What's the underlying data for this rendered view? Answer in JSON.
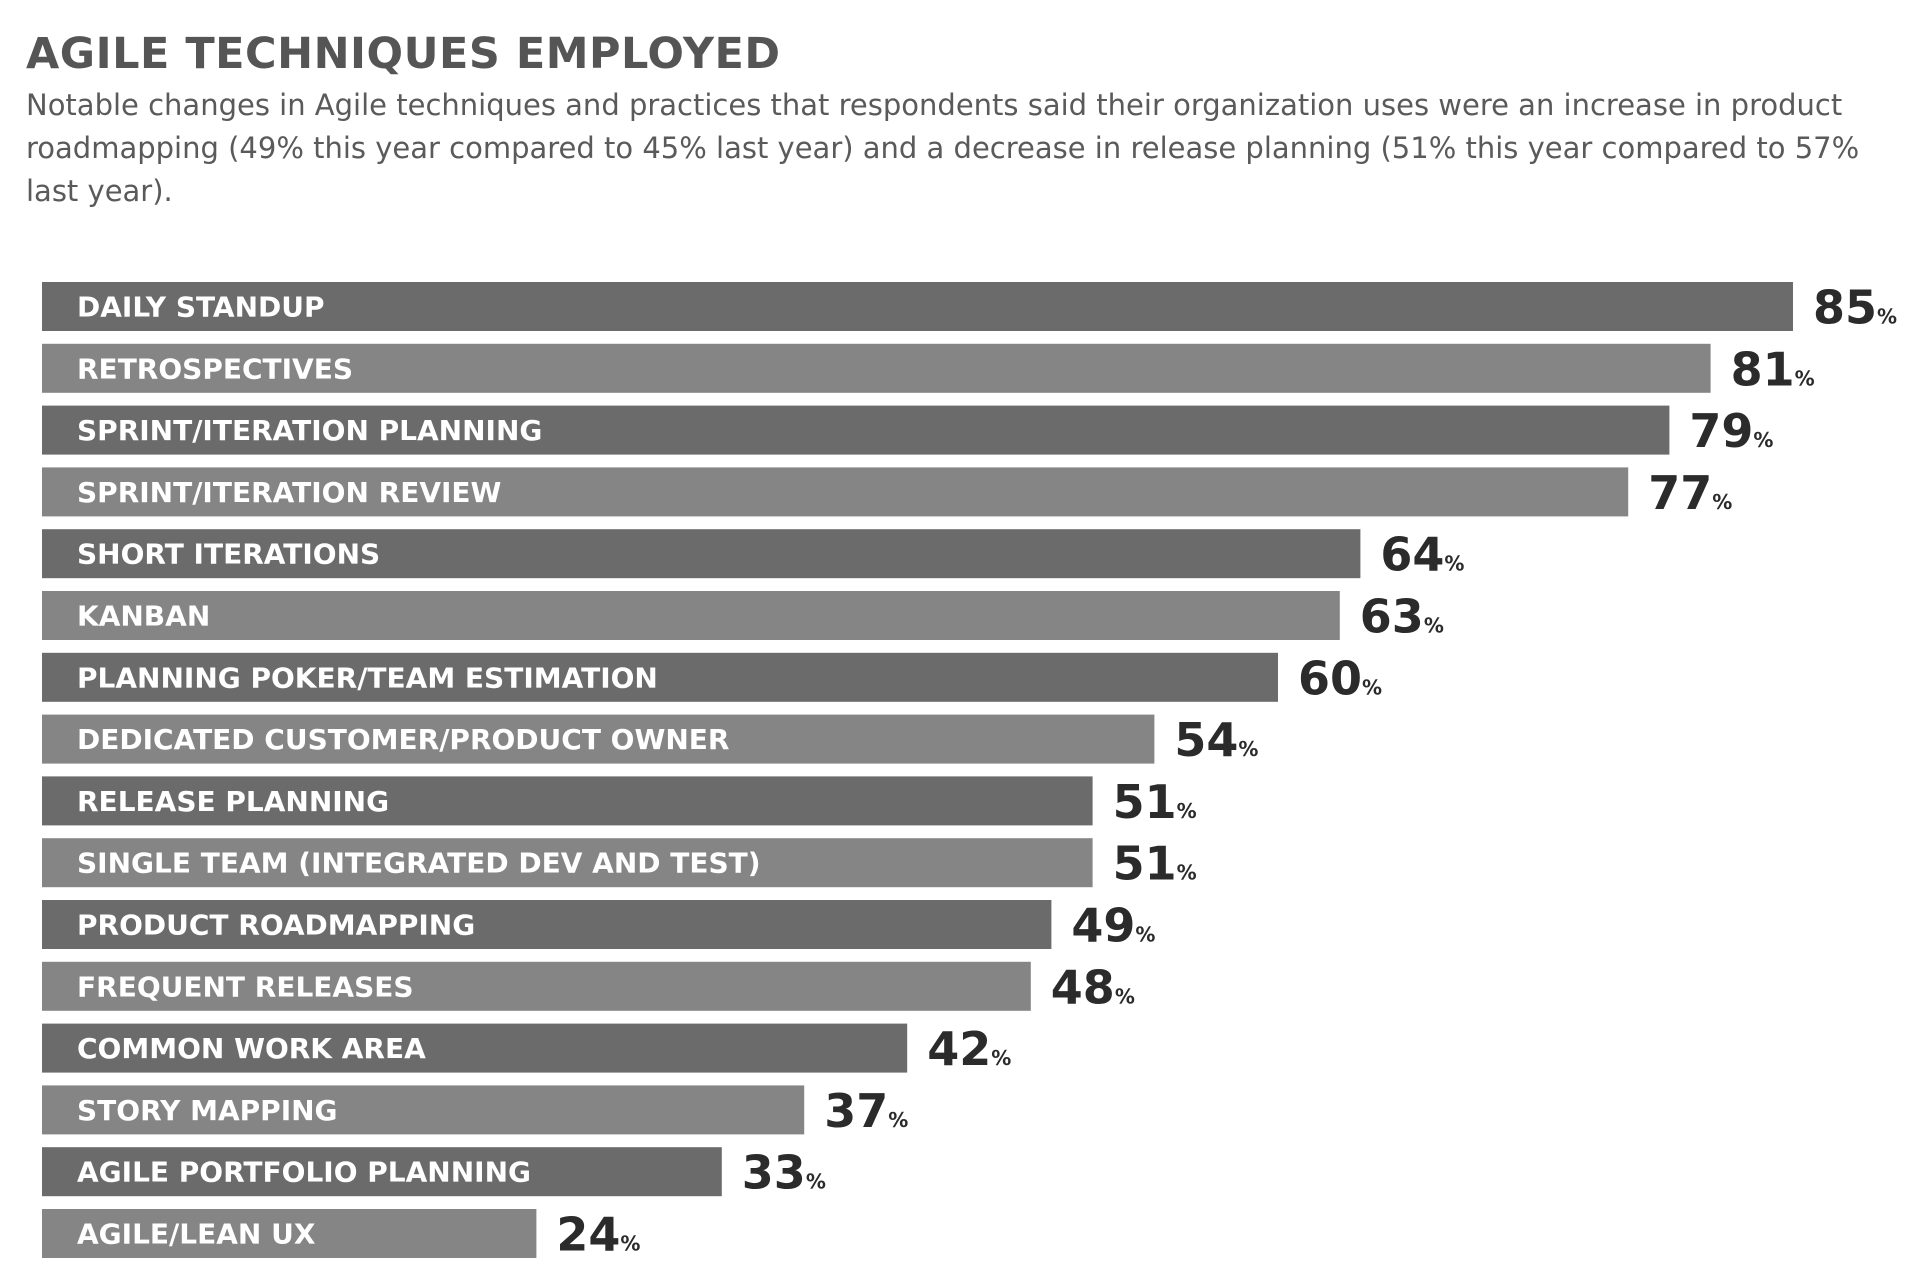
{
  "title": "AGILE TECHNIQUES EMPLOYED",
  "subtitle": "Notable changes in Agile techniques and practices that respondents said their organization uses were an increase in product roadmapping (49% this year compared to 45% last year) and a decrease in release planning (51% this year compared to 57% last year).",
  "colors": {
    "bar_dark": "#6b6b6b",
    "bar_light": "#858585"
  },
  "chart_data": {
    "type": "bar",
    "orientation": "horizontal",
    "categories": [
      "DAILY STANDUP",
      "RETROSPECTIVES",
      "SPRINT/ITERATION PLANNING",
      "SPRINT/ITERATION REVIEW",
      "SHORT ITERATIONS",
      "KANBAN",
      "PLANNING POKER/TEAM ESTIMATION",
      "DEDICATED CUSTOMER/PRODUCT OWNER",
      "RELEASE PLANNING",
      "SINGLE TEAM (INTEGRATED DEV AND TEST)",
      "PRODUCT ROADMAPPING",
      "FREQUENT RELEASES",
      "COMMON WORK AREA",
      "STORY MAPPING",
      "AGILE PORTFOLIO PLANNING",
      "AGILE/LEAN UX"
    ],
    "values": [
      85,
      81,
      79,
      77,
      64,
      63,
      60,
      54,
      51,
      51,
      49,
      48,
      42,
      37,
      33,
      24
    ],
    "value_suffix": "%",
    "xlim": [
      0,
      100
    ],
    "grid": false,
    "legend": "none"
  }
}
